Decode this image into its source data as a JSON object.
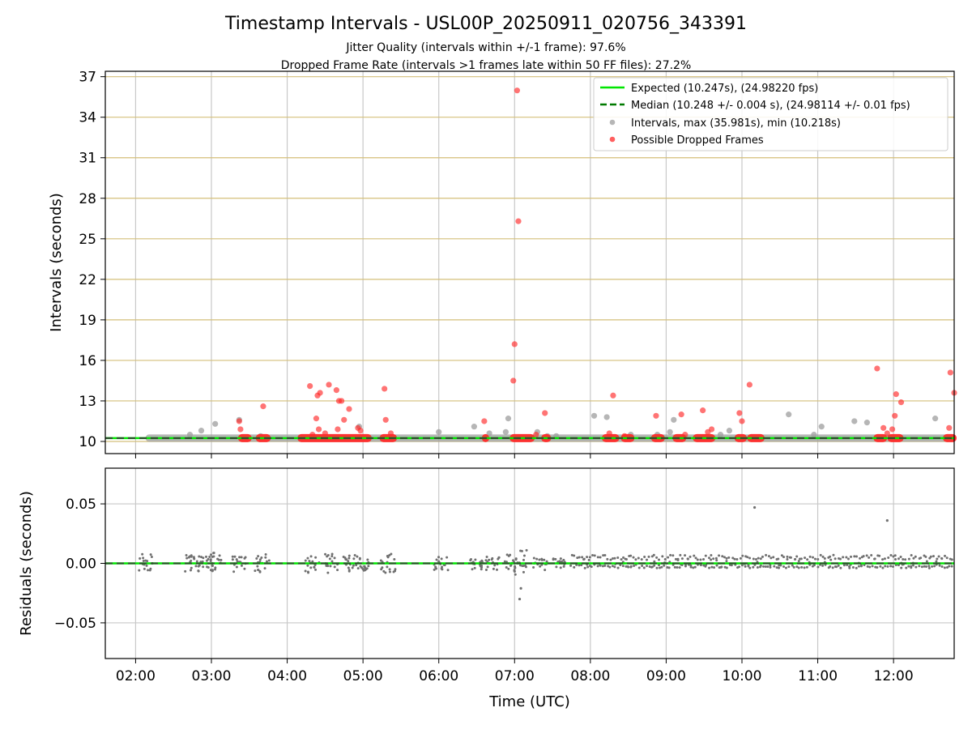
{
  "figure": {
    "title": "Timestamp Intervals - USL00P_20250911_020756_343391",
    "subtitle_1": "Jitter Quality (intervals within +/-1 frame): 97.6%",
    "subtitle_2": "Dropped Frame Rate (intervals >1 frames late within 50 FF files): 27.2%",
    "xlabel": "Time (UTC)"
  },
  "colors": {
    "expected": "#00e600",
    "median": "#007a00",
    "intervals": "#9e9e9e",
    "dropped": "#ff2a2a",
    "residual": "#707070",
    "hgrid_top": "#d4bf7a",
    "grid": "#c8c8c8"
  },
  "chart_data": [
    {
      "type": "scatter",
      "ylabel": "Intervals (seconds)",
      "xlim": [
        "01:36",
        "12:48"
      ],
      "ylim": [
        9.1,
        37.4
      ],
      "x_ticks": [
        "02:00",
        "03:00",
        "04:00",
        "05:00",
        "06:00",
        "07:00",
        "08:00",
        "09:00",
        "10:00",
        "11:00",
        "12:00"
      ],
      "y_ticks": [
        10,
        13,
        16,
        19,
        22,
        25,
        28,
        31,
        34,
        37
      ],
      "grid": true,
      "legend_position": "top-right",
      "legend": [
        "Expected (10.247s), (24.98220 fps)",
        "Median (10.248 +/- 0.004 s), (24.98114 +/- 0.01 fps)",
        "Intervals, max (35.981s), min (10.218s)",
        "Possible Dropped Frames"
      ],
      "expected_interval": 10.247,
      "median_interval": 10.248,
      "series": [
        {
          "name": "Intervals, max (35.981s), min (10.218s)",
          "baseline": {
            "value": 10.25,
            "x_from": "02:08",
            "x_to": "12:48"
          },
          "points": [
            [
              "02:43",
              10.5
            ],
            [
              "02:52",
              10.8
            ],
            [
              "03:03",
              11.3
            ],
            [
              "03:22",
              11.6
            ],
            [
              "03:39",
              10.4
            ],
            [
              "04:57",
              11.1
            ],
            [
              "06:00",
              10.7
            ],
            [
              "06:28",
              11.1
            ],
            [
              "06:40",
              10.6
            ],
            [
              "06:53",
              10.7
            ],
            [
              "06:55",
              11.7
            ],
            [
              "07:18",
              10.7
            ],
            [
              "07:26",
              10.4
            ],
            [
              "07:33",
              10.4
            ],
            [
              "08:03",
              11.9
            ],
            [
              "08:13",
              11.8
            ],
            [
              "08:32",
              10.5
            ],
            [
              "08:53",
              10.5
            ],
            [
              "09:03",
              10.7
            ],
            [
              "09:06",
              11.6
            ],
            [
              "09:43",
              10.5
            ],
            [
              "09:50",
              10.8
            ],
            [
              "10:37",
              12.0
            ],
            [
              "10:57",
              10.5
            ],
            [
              "11:03",
              11.1
            ],
            [
              "11:29",
              11.5
            ],
            [
              "11:39",
              11.4
            ],
            [
              "12:33",
              11.7
            ]
          ]
        },
        {
          "name": "Possible Dropped Frames",
          "baseline": {
            "value": 10.25
          },
          "baseline_segments": [
            [
              "03:23",
              "03:30"
            ],
            [
              "03:37",
              "03:45"
            ],
            [
              "04:10",
              "05:05"
            ],
            [
              "05:15",
              "05:25"
            ],
            [
              "06:36",
              "06:38"
            ],
            [
              "06:58",
              "07:14"
            ],
            [
              "07:23",
              "07:27"
            ],
            [
              "08:11",
              "08:21"
            ],
            [
              "08:26",
              "08:33"
            ],
            [
              "08:50",
              "08:57"
            ],
            [
              "09:07",
              "09:14"
            ],
            [
              "09:23",
              "09:37"
            ],
            [
              "09:56",
              "10:02"
            ],
            [
              "10:06",
              "10:16"
            ],
            [
              "11:46",
              "11:53"
            ],
            [
              "11:57",
              "12:06"
            ],
            [
              "12:41",
              "12:48"
            ]
          ],
          "points": [
            [
              "03:22",
              11.5
            ],
            [
              "03:23",
              10.9
            ],
            [
              "03:41",
              12.6
            ],
            [
              "04:18",
              14.1
            ],
            [
              "04:23",
              11.7
            ],
            [
              "04:24",
              13.4
            ],
            [
              "04:26",
              13.6
            ],
            [
              "04:25",
              10.9
            ],
            [
              "04:20",
              10.5
            ],
            [
              "04:30",
              10.6
            ],
            [
              "04:33",
              14.2
            ],
            [
              "04:39",
              13.8
            ],
            [
              "04:41",
              13.0
            ],
            [
              "04:43",
              13.0
            ],
            [
              "04:45",
              11.6
            ],
            [
              "04:40",
              10.9
            ],
            [
              "04:49",
              12.4
            ],
            [
              "04:56",
              11.0
            ],
            [
              "04:58",
              10.8
            ],
            [
              "05:17",
              13.9
            ],
            [
              "05:18",
              11.6
            ],
            [
              "05:22",
              10.6
            ],
            [
              "06:36",
              11.5
            ],
            [
              "06:59",
              14.5
            ],
            [
              "07:00",
              17.2
            ],
            [
              "07:02",
              35.981
            ],
            [
              "07:03",
              26.3
            ],
            [
              "07:17",
              10.5
            ],
            [
              "07:24",
              12.1
            ],
            [
              "08:18",
              13.4
            ],
            [
              "08:15",
              10.6
            ],
            [
              "08:27",
              10.4
            ],
            [
              "08:52",
              11.9
            ],
            [
              "09:12",
              12.0
            ],
            [
              "09:15",
              10.5
            ],
            [
              "09:29",
              12.3
            ],
            [
              "09:33",
              10.7
            ],
            [
              "09:36",
              10.9
            ],
            [
              "09:58",
              12.1
            ],
            [
              "10:00",
              11.5
            ],
            [
              "10:06",
              14.2
            ],
            [
              "11:47",
              15.4
            ],
            [
              "11:52",
              11.0
            ],
            [
              "11:55",
              10.6
            ],
            [
              "11:59",
              10.9
            ],
            [
              "12:01",
              11.9
            ],
            [
              "12:02",
              13.5
            ],
            [
              "12:06",
              12.9
            ],
            [
              "12:44",
              11.0
            ],
            [
              "12:45",
              15.1
            ],
            [
              "12:48",
              13.6
            ]
          ]
        }
      ]
    },
    {
      "type": "scatter",
      "ylabel": "Residuals (seconds)",
      "xlim": [
        "01:36",
        "12:48"
      ],
      "ylim": [
        -0.08,
        0.08
      ],
      "x_ticks": [
        "02:00",
        "03:00",
        "04:00",
        "05:00",
        "06:00",
        "07:00",
        "08:00",
        "09:00",
        "10:00",
        "11:00",
        "12:00"
      ],
      "y_ticks": [
        {
          "value": 0.05,
          "label": "0.05"
        },
        {
          "value": 0.0,
          "label": "0.00"
        },
        {
          "value": -0.05,
          "label": "−0.05"
        }
      ],
      "grid": true,
      "expected_residual": 0.0,
      "median_residual": 0.0,
      "series": [
        {
          "name": "Residuals",
          "clusters_early": [
            {
              "x": "02:08",
              "spread": 0.008
            },
            {
              "x": "02:45",
              "spread": 0.008
            },
            {
              "x": "02:55",
              "spread": 0.006
            },
            {
              "x": "03:03",
              "spread": 0.009
            },
            {
              "x": "03:22",
              "spread": 0.007
            },
            {
              "x": "03:40",
              "spread": 0.008
            },
            {
              "x": "04:20",
              "spread": 0.008
            },
            {
              "x": "04:35",
              "spread": 0.008
            },
            {
              "x": "04:50",
              "spread": 0.007
            },
            {
              "x": "05:00",
              "spread": 0.006
            },
            {
              "x": "05:20",
              "spread": 0.008
            },
            {
              "x": "06:02",
              "spread": 0.006
            },
            {
              "x": "06:30",
              "spread": 0.005
            },
            {
              "x": "06:42",
              "spread": 0.006
            },
            {
              "x": "06:57",
              "spread": 0.008
            },
            {
              "x": "07:04",
              "spread": 0.012
            },
            {
              "x": "07:20",
              "spread": 0.006
            },
            {
              "x": "07:34",
              "spread": 0.004
            }
          ],
          "dense_band": {
            "x_from": "07:45",
            "x_to": "12:48",
            "upper": 0.007,
            "lower": -0.004
          },
          "outliers": [
            [
              "07:04",
              -0.03
            ],
            [
              "07:05",
              -0.021
            ],
            [
              "10:10",
              0.047
            ],
            [
              "11:55",
              0.036
            ]
          ]
        }
      ]
    }
  ]
}
